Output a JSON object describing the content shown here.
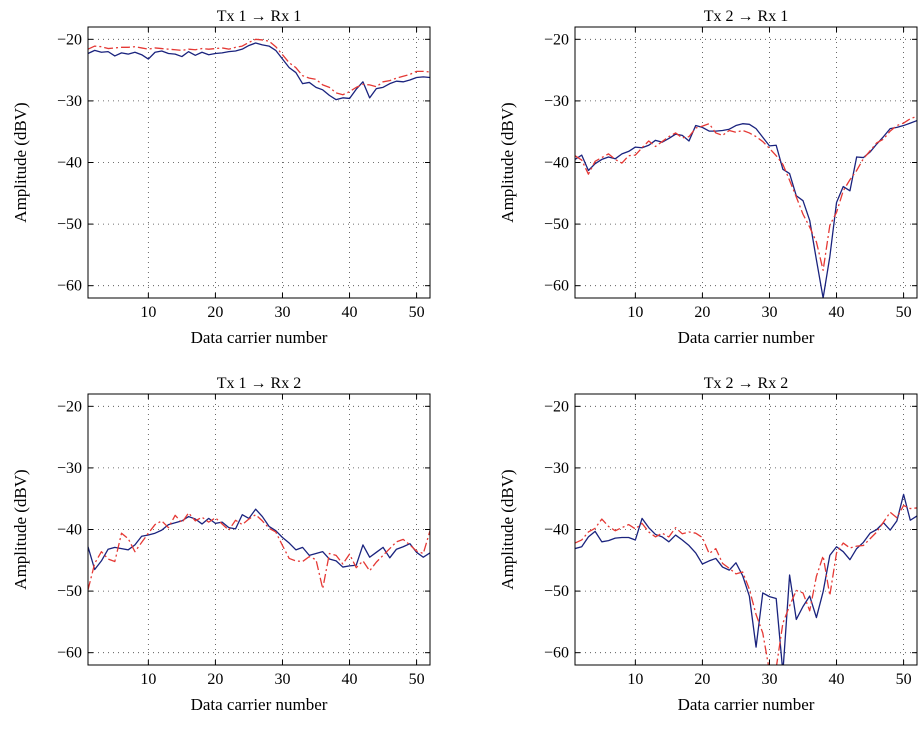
{
  "chart_data": [
    {
      "type": "line",
      "title": "Tx 1 → Rx 1",
      "xlabel": "Data carrier number",
      "ylabel": "Amplitude (dBV)",
      "xlim": [
        1,
        52
      ],
      "ylim": [
        -62,
        -18
      ],
      "xticks": [
        10,
        20,
        30,
        40,
        50
      ],
      "yticks": [
        -20,
        -30,
        -40,
        -50,
        -60
      ],
      "xtick_labels": [
        "10",
        "20",
        "30",
        "40",
        "50"
      ],
      "ytick_labels": [
        "−20",
        "−30",
        "−40",
        "−50",
        "−60"
      ],
      "grid": true,
      "series": [
        {
          "color": "#1a237e",
          "dash": "solid",
          "x": [
            1,
            2,
            3,
            4,
            5,
            6,
            7,
            8,
            9,
            10,
            11,
            12,
            13,
            14,
            15,
            16,
            17,
            18,
            19,
            20,
            21,
            22,
            23,
            24,
            25,
            26,
            27,
            28,
            29,
            30,
            31,
            32,
            33,
            34,
            35,
            36,
            37,
            38,
            39,
            40,
            41,
            42,
            43,
            44,
            45,
            46,
            47,
            48,
            49,
            50,
            51,
            52
          ],
          "y": [
            -22.3,
            -21.8,
            -22.1,
            -22.0,
            -22.7,
            -22.2,
            -22.4,
            -22.1,
            -22.5,
            -23.2,
            -22.1,
            -21.9,
            -22.3,
            -22.4,
            -22.8,
            -22.0,
            -22.6,
            -22.1,
            -22.5,
            -22.3,
            -22.2,
            -22.0,
            -21.9,
            -21.6,
            -21.0,
            -20.6,
            -20.9,
            -21.1,
            -21.8,
            -23.2,
            -24.6,
            -25.4,
            -27.2,
            -27.0,
            -27.8,
            -28.2,
            -29.1,
            -29.8,
            -29.5,
            -29.6,
            -28.1,
            -26.9,
            -29.5,
            -28.0,
            -27.8,
            -27.2,
            -26.8,
            -26.9,
            -26.6,
            -26.2,
            -26.1,
            -26.2
          ]
        },
        {
          "color": "#e53935",
          "dash": "dashdot",
          "x": [
            1,
            2,
            3,
            4,
            5,
            6,
            7,
            8,
            9,
            10,
            11,
            12,
            13,
            14,
            15,
            16,
            17,
            18,
            19,
            20,
            21,
            22,
            23,
            24,
            25,
            26,
            27,
            28,
            29,
            30,
            31,
            32,
            33,
            34,
            35,
            36,
            37,
            38,
            39,
            40,
            41,
            42,
            43,
            44,
            45,
            46,
            47,
            48,
            49,
            50,
            51,
            52
          ],
          "y": [
            -21.6,
            -21.1,
            -21.2,
            -21.5,
            -21.4,
            -21.3,
            -21.3,
            -21.2,
            -21.4,
            -21.6,
            -21.4,
            -21.5,
            -21.6,
            -21.7,
            -21.8,
            -21.6,
            -21.7,
            -21.5,
            -21.6,
            -21.5,
            -21.4,
            -21.6,
            -21.3,
            -21.1,
            -20.5,
            -20.0,
            -20.1,
            -20.3,
            -21.2,
            -22.5,
            -23.8,
            -24.6,
            -25.9,
            -26.3,
            -26.5,
            -27.4,
            -27.8,
            -28.7,
            -29.0,
            -28.5,
            -27.8,
            -27.3,
            -27.4,
            -27.7,
            -26.9,
            -26.7,
            -26.3,
            -26.0,
            -25.7,
            -25.2,
            -25.2,
            -25.3
          ]
        }
      ]
    },
    {
      "type": "line",
      "title": "Tx 2 → Rx 1",
      "xlabel": "Data carrier number",
      "ylabel": "Amplitude (dBV)",
      "xlim": [
        1,
        52
      ],
      "ylim": [
        -62,
        -18
      ],
      "xticks": [
        10,
        20,
        30,
        40,
        50
      ],
      "yticks": [
        -20,
        -30,
        -40,
        -50,
        -60
      ],
      "xtick_labels": [
        "10",
        "20",
        "30",
        "40",
        "50"
      ],
      "ytick_labels": [
        "−20",
        "−30",
        "−40",
        "−50",
        "−60"
      ],
      "grid": true,
      "series": [
        {
          "color": "#1a237e",
          "dash": "solid",
          "x": [
            1,
            2,
            3,
            4,
            5,
            6,
            7,
            8,
            9,
            10,
            11,
            12,
            13,
            14,
            15,
            16,
            17,
            18,
            19,
            20,
            21,
            22,
            23,
            24,
            25,
            26,
            27,
            28,
            29,
            30,
            31,
            32,
            33,
            34,
            35,
            36,
            37,
            38,
            39,
            40,
            41,
            42,
            43,
            44,
            45,
            46,
            47,
            48,
            49,
            50,
            51,
            52
          ],
          "y": [
            -39.5,
            -38.8,
            -41.3,
            -40.2,
            -39.5,
            -39.1,
            -39.4,
            -38.6,
            -38.2,
            -37.5,
            -37.6,
            -37.2,
            -36.4,
            -36.7,
            -36.1,
            -35.4,
            -35.6,
            -36.5,
            -34.0,
            -34.3,
            -34.9,
            -34.9,
            -34.8,
            -34.6,
            -34.0,
            -33.7,
            -33.8,
            -34.5,
            -35.9,
            -37.3,
            -37.2,
            -41.1,
            -41.8,
            -45.4,
            -46.2,
            -49.4,
            -55.8,
            -62.0,
            -55.3,
            -46.5,
            -43.9,
            -44.6,
            -39.1,
            -39.2,
            -38.3,
            -37.0,
            -35.8,
            -34.5,
            -34.3,
            -34.0,
            -33.6,
            -33.2
          ]
        },
        {
          "color": "#e53935",
          "dash": "dashdot",
          "x": [
            1,
            2,
            3,
            4,
            5,
            6,
            7,
            8,
            9,
            10,
            11,
            12,
            13,
            14,
            15,
            16,
            17,
            18,
            19,
            20,
            21,
            22,
            23,
            24,
            25,
            26,
            27,
            28,
            29,
            30,
            31,
            32,
            33,
            34,
            35,
            36,
            37,
            38,
            39,
            40,
            41,
            42,
            43,
            44,
            45,
            46,
            47,
            48,
            49,
            50,
            51,
            52
          ],
          "y": [
            -38.9,
            -39.6,
            -41.9,
            -39.8,
            -39.2,
            -38.6,
            -39.5,
            -40.1,
            -38.9,
            -38.8,
            -37.6,
            -36.5,
            -37.4,
            -36.6,
            -35.8,
            -35.2,
            -36.0,
            -35.8,
            -34.4,
            -34.1,
            -33.7,
            -35.2,
            -35.6,
            -34.8,
            -35.1,
            -34.8,
            -35.2,
            -35.8,
            -36.6,
            -37.7,
            -38.9,
            -40.3,
            -42.9,
            -45.6,
            -48.4,
            -50.5,
            -52.9,
            -57.5,
            -50.2,
            -48.1,
            -44.6,
            -42.8,
            -41.3,
            -39.4,
            -38.1,
            -36.8,
            -36.2,
            -34.9,
            -34.0,
            -33.6,
            -32.9,
            -32.5
          ]
        }
      ]
    },
    {
      "type": "line",
      "title": "Tx 1 → Rx 2",
      "xlabel": "Data carrier number",
      "ylabel": "Amplitude (dBV)",
      "xlim": [
        1,
        52
      ],
      "ylim": [
        -62,
        -18
      ],
      "xticks": [
        10,
        20,
        30,
        40,
        50
      ],
      "yticks": [
        -20,
        -30,
        -40,
        -50,
        -60
      ],
      "xtick_labels": [
        "10",
        "20",
        "30",
        "40",
        "50"
      ],
      "ytick_labels": [
        "−20",
        "−30",
        "−40",
        "−50",
        "−60"
      ],
      "grid": true,
      "series": [
        {
          "color": "#1a237e",
          "dash": "solid",
          "x": [
            1,
            2,
            3,
            4,
            5,
            6,
            7,
            8,
            9,
            10,
            11,
            12,
            13,
            14,
            15,
            16,
            17,
            18,
            19,
            20,
            21,
            22,
            23,
            24,
            25,
            26,
            27,
            28,
            29,
            30,
            31,
            32,
            33,
            34,
            35,
            36,
            37,
            38,
            39,
            40,
            41,
            42,
            43,
            44,
            45,
            46,
            47,
            48,
            49,
            50,
            51,
            52
          ],
          "y": [
            -42.8,
            -46.5,
            -45.1,
            -43.2,
            -42.9,
            -43.1,
            -43.3,
            -42.5,
            -41.1,
            -40.9,
            -40.6,
            -40.1,
            -39.2,
            -38.9,
            -38.6,
            -37.9,
            -38.3,
            -39.1,
            -38.2,
            -39.0,
            -38.8,
            -39.7,
            -39.9,
            -37.6,
            -38.2,
            -36.7,
            -37.9,
            -39.5,
            -40.2,
            -41.3,
            -42.2,
            -43.3,
            -42.9,
            -44.2,
            -43.9,
            -43.6,
            -44.8,
            -45.1,
            -46.1,
            -45.9,
            -45.8,
            -42.5,
            -44.5,
            -43.7,
            -42.9,
            -44.6,
            -43.2,
            -42.8,
            -42.3,
            -43.7,
            -44.5,
            -43.8
          ]
        },
        {
          "color": "#e53935",
          "dash": "dashdot",
          "x": [
            1,
            2,
            3,
            4,
            5,
            6,
            7,
            8,
            9,
            10,
            11,
            12,
            13,
            14,
            15,
            16,
            17,
            18,
            19,
            20,
            21,
            22,
            23,
            24,
            25,
            26,
            27,
            28,
            29,
            30,
            31,
            32,
            33,
            34,
            35,
            36,
            37,
            38,
            39,
            40,
            41,
            42,
            43,
            44,
            45,
            46,
            47,
            48,
            49,
            50,
            51,
            52
          ],
          "y": [
            -49.8,
            -45.5,
            -43.6,
            -44.8,
            -45.2,
            -40.6,
            -41.5,
            -43.6,
            -42.1,
            -40.6,
            -39.2,
            -38.6,
            -39.7,
            -37.7,
            -38.9,
            -37.3,
            -38.6,
            -38.0,
            -38.8,
            -38.1,
            -39.1,
            -40.1,
            -38.5,
            -39.2,
            -38.3,
            -37.6,
            -38.6,
            -39.8,
            -40.4,
            -42.6,
            -44.7,
            -45.1,
            -45.2,
            -44.4,
            -44.9,
            -49.6,
            -43.9,
            -44.2,
            -45.6,
            -44.0,
            -46.2,
            -45.1,
            -46.7,
            -45.3,
            -44.2,
            -43.1,
            -42.0,
            -41.6,
            -42.5,
            -43.5,
            -43.9,
            -40.2
          ]
        }
      ]
    },
    {
      "type": "line",
      "title": "Tx 2 → Rx 2",
      "xlabel": "Data carrier number",
      "ylabel": "Amplitude (dBV)",
      "xlim": [
        1,
        52
      ],
      "ylim": [
        -62,
        -18
      ],
      "xticks": [
        10,
        20,
        30,
        40,
        50
      ],
      "yticks": [
        -20,
        -30,
        -40,
        -50,
        -60
      ],
      "xtick_labels": [
        "10",
        "20",
        "30",
        "40",
        "50"
      ],
      "ytick_labels": [
        "−20",
        "−30",
        "−40",
        "−50",
        "−60"
      ],
      "grid": true,
      "series": [
        {
          "color": "#1a237e",
          "dash": "solid",
          "x": [
            1,
            2,
            3,
            4,
            5,
            6,
            7,
            8,
            9,
            10,
            11,
            12,
            13,
            14,
            15,
            16,
            17,
            18,
            19,
            20,
            21,
            22,
            23,
            24,
            25,
            26,
            27,
            28,
            29,
            30,
            31,
            32,
            33,
            34,
            35,
            36,
            37,
            38,
            39,
            40,
            41,
            42,
            43,
            44,
            45,
            46,
            47,
            48,
            49,
            50,
            51,
            52
          ],
          "y": [
            -43.1,
            -42.8,
            -41.2,
            -40.3,
            -42.0,
            -41.8,
            -41.4,
            -41.3,
            -41.3,
            -41.7,
            -38.2,
            -39.7,
            -40.8,
            -41.2,
            -42.0,
            -40.9,
            -41.7,
            -42.6,
            -43.8,
            -45.6,
            -45.1,
            -44.7,
            -46.1,
            -46.6,
            -45.4,
            -47.5,
            -50.8,
            -59.1,
            -50.3,
            -50.9,
            -51.2,
            -63.2,
            -47.4,
            -54.6,
            -52.5,
            -50.8,
            -54.3,
            -50.1,
            -44.2,
            -42.8,
            -43.6,
            -44.9,
            -43.1,
            -42.1,
            -40.6,
            -40.0,
            -38.9,
            -40.1,
            -38.6,
            -34.3,
            -38.5,
            -37.8
          ]
        },
        {
          "color": "#e53935",
          "dash": "dashdot",
          "x": [
            1,
            2,
            3,
            4,
            5,
            6,
            7,
            8,
            9,
            10,
            11,
            12,
            13,
            14,
            15,
            16,
            17,
            18,
            19,
            20,
            21,
            22,
            23,
            24,
            25,
            26,
            27,
            28,
            29,
            30,
            31,
            32,
            33,
            34,
            35,
            36,
            37,
            38,
            39,
            40,
            41,
            42,
            43,
            44,
            45,
            46,
            47,
            48,
            49,
            50,
            51,
            52
          ],
          "y": [
            -42.2,
            -41.7,
            -40.4,
            -39.8,
            -38.3,
            -39.5,
            -40.2,
            -39.7,
            -39.2,
            -39.9,
            -39.0,
            -40.4,
            -41.2,
            -40.6,
            -41.2,
            -39.7,
            -40.7,
            -40.4,
            -40.6,
            -41.3,
            -43.9,
            -43.1,
            -45.5,
            -46.3,
            -47.2,
            -46.9,
            -49.7,
            -53.8,
            -56.8,
            -63.0,
            -62.5,
            -55.2,
            -52.4,
            -49.9,
            -50.3,
            -53.2,
            -47.6,
            -44.3,
            -50.7,
            -43.8,
            -42.2,
            -43.0,
            -42.7,
            -42.6,
            -41.5,
            -40.4,
            -38.8,
            -37.2,
            -38.1,
            -36.1,
            -36.6,
            -36.5
          ]
        }
      ]
    }
  ]
}
